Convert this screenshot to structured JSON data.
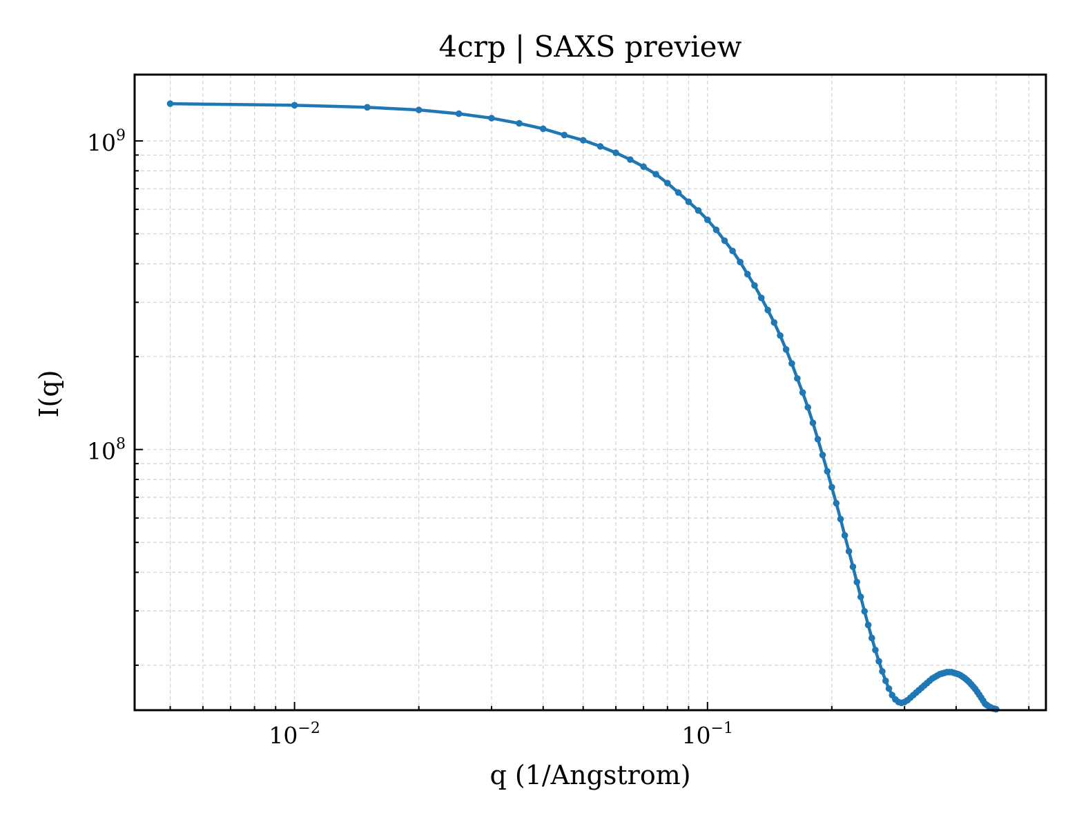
{
  "chart_data": {
    "type": "line",
    "title": "4crp | SAXS preview",
    "xlabel": "q (1/Angstrom)",
    "ylabel": "I(q)",
    "xscale": "log",
    "yscale": "log",
    "xlim": [
      0.0041,
      0.66
    ],
    "ylim": [
      14300000,
      1640000000
    ],
    "xticks": [
      {
        "value": 0.01,
        "base": "10",
        "exp": "−2"
      },
      {
        "value": 0.1,
        "base": "10",
        "exp": "−1"
      }
    ],
    "yticks": [
      {
        "value": 100000000,
        "base": "10",
        "exp": "8"
      },
      {
        "value": 1000000000,
        "base": "10",
        "exp": "9"
      }
    ],
    "grid": true,
    "color": "#1f77b4",
    "series": [
      {
        "x": [
          0.005,
          0.01,
          0.015,
          0.02,
          0.025,
          0.03,
          0.035,
          0.04,
          0.045,
          0.05,
          0.055,
          0.06,
          0.065,
          0.07,
          0.075,
          0.08,
          0.085,
          0.09,
          0.095,
          0.1,
          0.105,
          0.11,
          0.115,
          0.12,
          0.125,
          0.13,
          0.135,
          0.14,
          0.145,
          0.15,
          0.155,
          0.16,
          0.165,
          0.17,
          0.175,
          0.18,
          0.185,
          0.19,
          0.195,
          0.2,
          0.205,
          0.21,
          0.215,
          0.22,
          0.225,
          0.23,
          0.235,
          0.24,
          0.245,
          0.25,
          0.255,
          0.26,
          0.265,
          0.27,
          0.275,
          0.28,
          0.285,
          0.29,
          0.295,
          0.3,
          0.305,
          0.31,
          0.315,
          0.32,
          0.325,
          0.33,
          0.335,
          0.34,
          0.345,
          0.35,
          0.355,
          0.36,
          0.365,
          0.37,
          0.375,
          0.38,
          0.385,
          0.39,
          0.395,
          0.4,
          0.405,
          0.41,
          0.415,
          0.42,
          0.425,
          0.43,
          0.435,
          0.44,
          0.445,
          0.45,
          0.455,
          0.46,
          0.465,
          0.47,
          0.475,
          0.48,
          0.485,
          0.49,
          0.495,
          0.5
        ],
        "y": [
          1320000000,
          1305000000,
          1285000000,
          1260000000,
          1225000000,
          1185000000,
          1140000000,
          1095000000,
          1045000000,
          1005000000,
          960000000,
          915000000,
          870000000,
          825000000,
          780000000,
          730000000,
          680000000,
          635000000,
          595000000,
          555000000,
          515000000,
          475000000,
          440000000,
          405000000,
          370000000,
          340000000,
          310000000,
          283000000,
          258000000,
          234000000,
          211000000,
          190000000,
          170000000,
          153000000,
          137000000,
          122000000,
          108000000,
          96000000,
          85000000,
          75500000,
          67000000,
          59500000,
          52700000,
          46800000,
          41700000,
          37200000,
          33300000,
          29900000,
          27000000,
          24500000,
          22400000,
          20600000,
          19100000,
          17800000,
          16800000,
          16000000,
          15500000,
          15200000,
          15100000,
          15200000,
          15400000,
          15700000,
          16000000,
          16300000,
          16600000,
          16900000,
          17200000,
          17500000,
          17800000,
          18100000,
          18300000,
          18500000,
          18700000,
          18800000,
          18900000,
          19000000,
          19000000,
          19000000,
          18900000,
          18800000,
          18700000,
          18550000,
          18350000,
          18150000,
          17900000,
          17650000,
          17350000,
          17050000,
          16750000,
          16400000,
          16050000,
          15700000,
          15350000,
          15000000,
          14850000,
          14700000,
          14600000,
          14500000,
          14450000,
          14400000
        ]
      }
    ]
  }
}
